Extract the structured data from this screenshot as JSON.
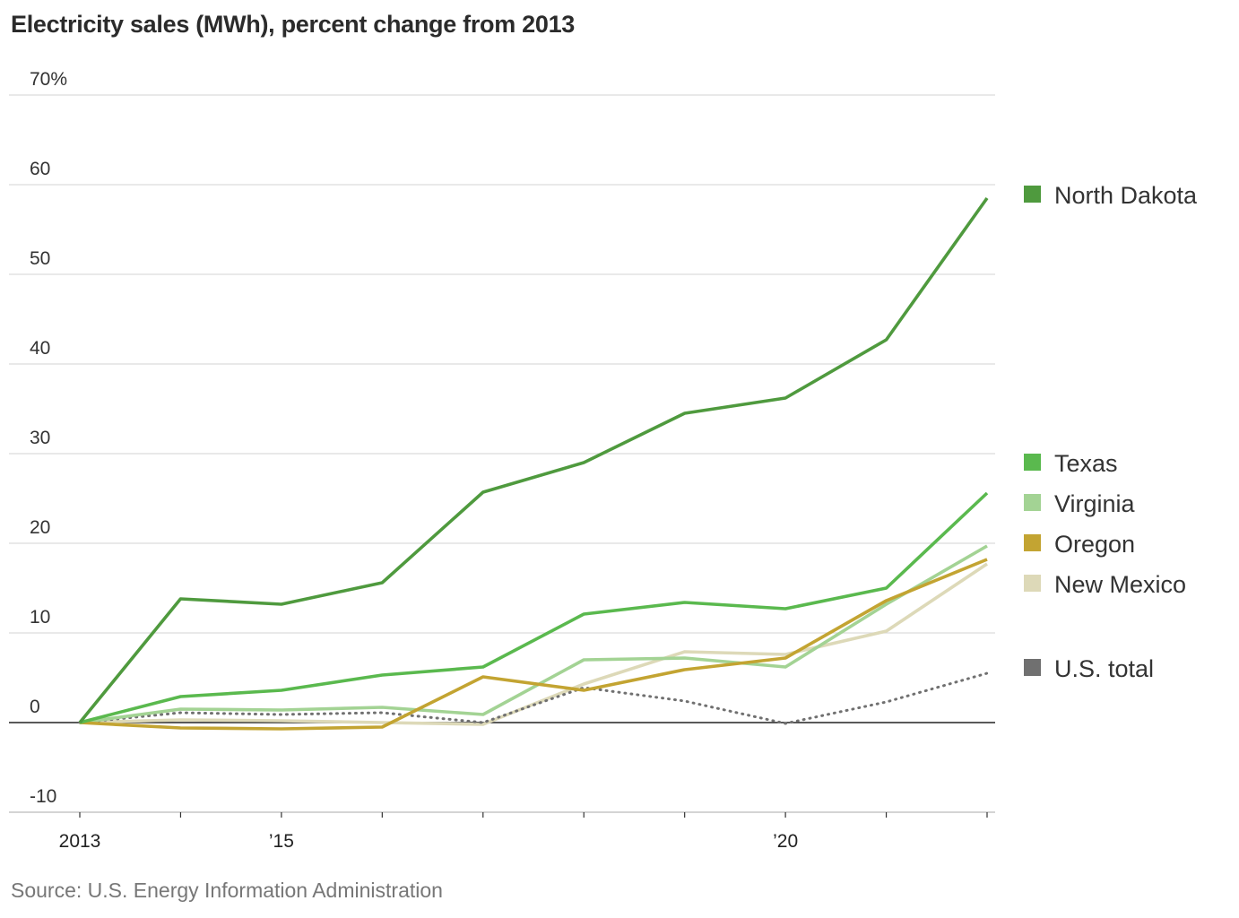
{
  "title": "Electricity sales (MWh), percent change from 2013",
  "source": "Source: U.S. Energy Information Administration",
  "chart_data": {
    "type": "line",
    "title": "Electricity sales (MWh), percent change from 2013",
    "xlabel": "",
    "ylabel": "",
    "x": [
      2013,
      2014,
      2015,
      2016,
      2017,
      2018,
      2019,
      2020,
      2021,
      2022
    ],
    "ylim": [
      -10,
      70
    ],
    "yticks": [
      -10,
      0,
      10,
      20,
      30,
      40,
      50,
      60,
      70
    ],
    "ytick_labels": [
      "-10",
      "0",
      "10",
      "20",
      "30",
      "40",
      "50",
      "60",
      "70%"
    ],
    "xtick_labels": [
      {
        "x": 2013,
        "label": "2013"
      },
      {
        "x": 2015,
        "label": "’15"
      },
      {
        "x": 2020,
        "label": "’20"
      }
    ],
    "grid": true,
    "legend": "right",
    "series": [
      {
        "name": "North Dakota",
        "color": "#4f9a3e",
        "style": "solid",
        "values": [
          0,
          13.8,
          13.2,
          15.6,
          25.7,
          29.0,
          34.5,
          36.2,
          42.7,
          58.5
        ]
      },
      {
        "name": "Texas",
        "color": "#5ab94e",
        "style": "solid",
        "values": [
          0,
          2.9,
          3.6,
          5.3,
          6.2,
          12.1,
          13.4,
          12.7,
          15.0,
          25.6
        ]
      },
      {
        "name": "Virginia",
        "color": "#a3d394",
        "style": "solid",
        "values": [
          0,
          1.5,
          1.4,
          1.7,
          0.9,
          7.0,
          7.2,
          6.2,
          13.2,
          19.7
        ]
      },
      {
        "name": "Oregon",
        "color": "#c3a432",
        "style": "solid",
        "values": [
          0,
          -0.6,
          -0.7,
          -0.5,
          5.1,
          3.6,
          5.9,
          7.2,
          13.6,
          18.2
        ]
      },
      {
        "name": "New Mexico",
        "color": "#ddd9b8",
        "style": "solid",
        "values": [
          0,
          0.3,
          0.2,
          0.0,
          -0.2,
          4.3,
          7.9,
          7.6,
          10.2,
          17.7
        ]
      },
      {
        "name": "U.S. total",
        "color": "#707070",
        "style": "dotted",
        "values": [
          0,
          1.1,
          0.9,
          1.1,
          0.0,
          3.9,
          2.4,
          -0.1,
          2.3,
          5.5
        ]
      }
    ]
  }
}
